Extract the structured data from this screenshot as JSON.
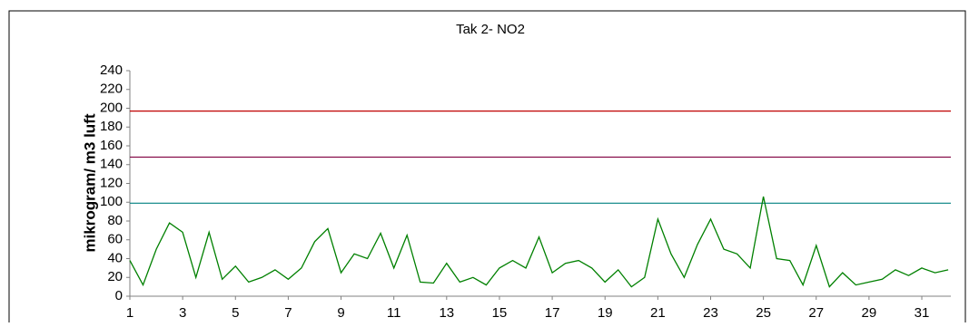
{
  "chart_data": {
    "type": "line",
    "title": "Tak 2- NO2",
    "y_label": "mikrogram/ m3 luft",
    "x": [
      1,
      1.5,
      2,
      2.5,
      3,
      3.5,
      4,
      4.5,
      5,
      5.5,
      6,
      6.5,
      7,
      7.5,
      8,
      8.5,
      9,
      9.5,
      10,
      10.5,
      11,
      11.5,
      12,
      12.5,
      13,
      13.5,
      14,
      14.5,
      15,
      15.5,
      16,
      16.5,
      17,
      17.5,
      18,
      18.5,
      19,
      19.5,
      20,
      20.5,
      21,
      21.5,
      22,
      22.5,
      23,
      23.5,
      24,
      24.5,
      25,
      25.5,
      26,
      26.5,
      27,
      27.5,
      28,
      28.5,
      29,
      29.5,
      30,
      30.5,
      31,
      31.5,
      32
    ],
    "series": [
      {
        "color": "#008000",
        "values": [
          38,
          12,
          50,
          78,
          68,
          20,
          68,
          18,
          32,
          15,
          20,
          28,
          18,
          30,
          58,
          72,
          25,
          45,
          40,
          67,
          30,
          65,
          15,
          14,
          35,
          15,
          20,
          12,
          30,
          38,
          30,
          63,
          25,
          35,
          38,
          30,
          15,
          28,
          10,
          20,
          82,
          45,
          20,
          55,
          82,
          50,
          45,
          30,
          106,
          40,
          38,
          12,
          54,
          10,
          25,
          12,
          15,
          18,
          28,
          22,
          30,
          25,
          28
        ]
      }
    ],
    "reference_lines": [
      {
        "value": 197,
        "color": "#c00000"
      },
      {
        "value": 148,
        "color": "#800040"
      },
      {
        "value": 99,
        "color": "#008080"
      }
    ],
    "xlim": [
      1,
      32.1
    ],
    "xticks": [
      1,
      3,
      5,
      7,
      9,
      11,
      13,
      15,
      17,
      19,
      21,
      23,
      25,
      27,
      29,
      31
    ],
    "ylim": [
      0,
      240
    ],
    "yticks": [
      0,
      20,
      40,
      60,
      80,
      100,
      120,
      140,
      160,
      180,
      200,
      220,
      240
    ]
  }
}
